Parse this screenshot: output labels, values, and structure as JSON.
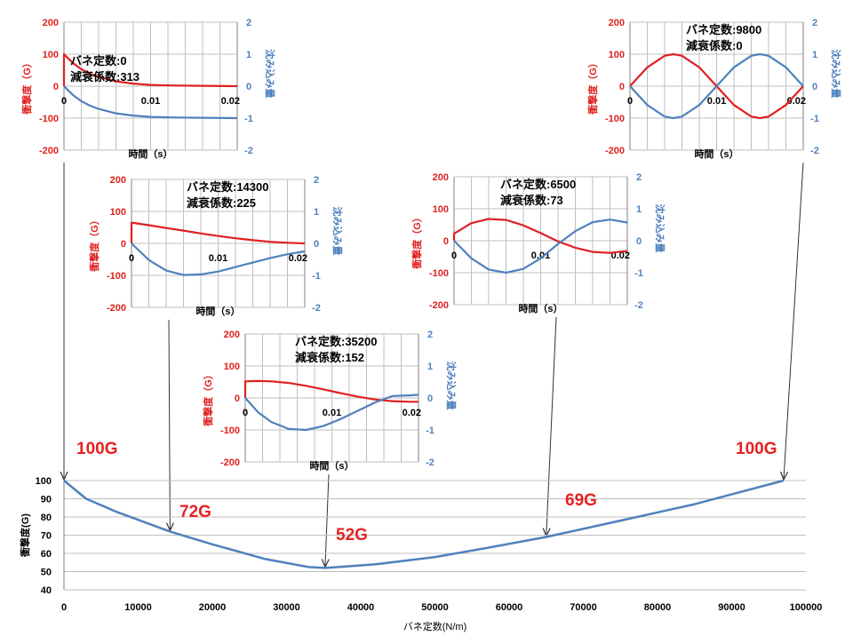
{
  "colors": {
    "accel": "#e02020",
    "defl": "#4f81bd",
    "grid": "#bfbfbf",
    "axis": "#808080",
    "annotation": "#e52222"
  },
  "chart_data": [
    {
      "id": "main",
      "type": "line",
      "x": [
        0,
        3000,
        7000,
        14300,
        20000,
        27000,
        33000,
        35200,
        42000,
        50000,
        57000,
        65000,
        75000,
        85000,
        97000
      ],
      "series": [
        {
          "values": [
            100,
            90,
            83,
            72,
            65,
            57,
            52.5,
            52,
            54,
            58,
            63,
            69,
            78,
            87,
            100
          ]
        }
      ],
      "xlabel": "バネ定数(N/m)",
      "ylabel": "衝撃度(G)",
      "xlim": [
        0,
        100000
      ],
      "ylim": [
        40,
        100
      ],
      "xticks": [
        "0",
        "10000",
        "20000",
        "30000",
        "40000",
        "50000",
        "60000",
        "70000",
        "80000",
        "90000",
        "100000"
      ],
      "yticks": [
        "40",
        "50",
        "60",
        "70",
        "80",
        "90",
        "100"
      ],
      "grid": true,
      "annotations": [
        {
          "text": "100G",
          "x": 0,
          "y": 100
        },
        {
          "text": "72G",
          "x": 14300,
          "y": 72
        },
        {
          "text": "52G",
          "x": 35200,
          "y": 52
        },
        {
          "text": "69G",
          "x": 65000,
          "y": 69
        },
        {
          "text": "100G",
          "x": 97000,
          "y": 100
        }
      ]
    },
    {
      "id": "k0",
      "type": "line",
      "spring_label": "バネ定数:",
      "spring_value": "0",
      "damping_label": "減衰係数:",
      "damping_value": "313",
      "xlabel": "時間（s）",
      "y1label": "衝撃度（G）",
      "y2label": "沈み込み量",
      "xlim": [
        0,
        0.02
      ],
      "y1lim": [
        -200,
        200
      ],
      "y2lim": [
        -2,
        2
      ],
      "xticks": [
        "0",
        "0.01",
        "0.02"
      ],
      "y1ticks": [
        "200",
        "100",
        "0",
        "-100",
        "-200"
      ],
      "y2ticks": [
        "2",
        "1",
        "0",
        "-1",
        "-2"
      ],
      "series": [
        {
          "axis": "left",
          "x": [
            0,
            0.001,
            0.002,
            0.003,
            0.004,
            0.006,
            0.008,
            0.01,
            0.013,
            0.016,
            0.02
          ],
          "values": [
            100,
            73,
            53,
            39,
            29,
            15,
            8,
            4,
            2,
            1,
            0
          ]
        },
        {
          "axis": "right",
          "x": [
            0,
            0.001,
            0.002,
            0.003,
            0.004,
            0.006,
            0.008,
            0.01,
            0.013,
            0.016,
            0.02
          ],
          "values": [
            0,
            -0.27,
            -0.47,
            -0.61,
            -0.71,
            -0.85,
            -0.92,
            -0.96,
            -0.98,
            -0.99,
            -1.0
          ]
        }
      ]
    },
    {
      "id": "k9800",
      "type": "line",
      "spring_label": "バネ定数:",
      "spring_value": "9800",
      "damping_label": "減衰係数:",
      "damping_value": "0",
      "xlabel": "時間（s）",
      "y1label": "衝撃度（G）",
      "y2label": "沈み込み量",
      "xlim": [
        0,
        0.02
      ],
      "y1lim": [
        -200,
        200
      ],
      "y2lim": [
        -2,
        2
      ],
      "xticks": [
        "0",
        "0.01",
        "0.02"
      ],
      "y1ticks": [
        "200",
        "100",
        "0",
        "-100",
        "-200"
      ],
      "y2ticks": [
        "2",
        "1",
        "0",
        "-1",
        "-2"
      ],
      "series": [
        {
          "axis": "left",
          "x": [
            0,
            0.002,
            0.004,
            0.005,
            0.006,
            0.008,
            0.01,
            0.012,
            0.014,
            0.015,
            0.016,
            0.018,
            0.02
          ],
          "values": [
            0,
            59,
            95,
            100,
            95,
            59,
            0,
            -59,
            -95,
            -100,
            -95,
            -59,
            0
          ]
        },
        {
          "axis": "right",
          "x": [
            0,
            0.002,
            0.004,
            0.005,
            0.006,
            0.008,
            0.01,
            0.012,
            0.014,
            0.015,
            0.016,
            0.018,
            0.02
          ],
          "values": [
            0,
            -0.59,
            -0.95,
            -1.0,
            -0.95,
            -0.59,
            0,
            0.59,
            0.95,
            1.0,
            0.95,
            0.59,
            0
          ]
        }
      ]
    },
    {
      "id": "k14300",
      "type": "line",
      "spring_label": "バネ定数:",
      "spring_value": "14300",
      "damping_label": "減衰係数:",
      "damping_value": "225",
      "xlabel": "時間（s）",
      "y1label": "衝撃度（G）",
      "y2label": "沈み込み量",
      "xlim": [
        0,
        0.02
      ],
      "y1lim": [
        -200,
        200
      ],
      "y2lim": [
        -2,
        2
      ],
      "xticks": [
        "0",
        "0.01",
        "0.02"
      ],
      "y1ticks": [
        "200",
        "100",
        "0",
        "-100",
        "-200"
      ],
      "y2ticks": [
        "2",
        "1",
        "0",
        "-1",
        "-2"
      ],
      "series": [
        {
          "axis": "left",
          "x": [
            0,
            0.002,
            0.004,
            0.006,
            0.008,
            0.01,
            0.012,
            0.014,
            0.016,
            0.018,
            0.02
          ],
          "values": [
            65,
            57,
            48,
            40,
            31,
            23,
            16,
            10,
            5,
            2,
            0
          ]
        },
        {
          "axis": "right",
          "x": [
            0,
            0.002,
            0.004,
            0.006,
            0.008,
            0.01,
            0.012,
            0.014,
            0.016,
            0.018,
            0.02
          ],
          "values": [
            0,
            -0.52,
            -0.85,
            -0.99,
            -0.97,
            -0.88,
            -0.74,
            -0.6,
            -0.46,
            -0.34,
            -0.25
          ]
        }
      ]
    },
    {
      "id": "k6500",
      "type": "line",
      "spring_label": "バネ定数:",
      "spring_value": "6500",
      "damping_label": "減衰係数:",
      "damping_value": "73",
      "xlabel": "時間（s）",
      "y1label": "衝撃度（G）",
      "y2label": "沈み込み量",
      "xlim": [
        0,
        0.02
      ],
      "y1lim": [
        -200,
        200
      ],
      "y2lim": [
        -2,
        2
      ],
      "xticks": [
        "0",
        "0.01",
        "0.02"
      ],
      "y1ticks": [
        "200",
        "100",
        "0",
        "-100",
        "-200"
      ],
      "y2ticks": [
        "2",
        "1",
        "0",
        "-1",
        "-2"
      ],
      "series": [
        {
          "axis": "left",
          "x": [
            0,
            0.002,
            0.004,
            0.006,
            0.008,
            0.01,
            0.012,
            0.014,
            0.016,
            0.018,
            0.02
          ],
          "values": [
            22,
            55,
            68,
            65,
            48,
            24,
            -2,
            -22,
            -35,
            -38,
            -32
          ]
        },
        {
          "axis": "right",
          "x": [
            0,
            0.002,
            0.004,
            0.006,
            0.008,
            0.01,
            0.012,
            0.014,
            0.016,
            0.018,
            0.02
          ],
          "values": [
            0,
            -0.55,
            -0.9,
            -1.0,
            -0.88,
            -0.55,
            -0.1,
            0.3,
            0.58,
            0.66,
            0.57
          ]
        }
      ]
    },
    {
      "id": "k35200",
      "type": "line",
      "spring_label": "バネ定数:",
      "spring_value": "35200",
      "damping_label": "減衰係数:",
      "damping_value": "152",
      "xlabel": "時間（s）",
      "y1label": "衝撃度（G）",
      "y2label": "沈み込み量",
      "xlim": [
        0,
        0.02
      ],
      "y1lim": [
        -200,
        200
      ],
      "y2lim": [
        -2,
        2
      ],
      "xticks": [
        "0",
        "0.01",
        "0.02"
      ],
      "y1ticks": [
        "200",
        "100",
        "0",
        "-100",
        "-200"
      ],
      "y2ticks": [
        "2",
        "1",
        "0",
        "-1",
        "-2"
      ],
      "series": [
        {
          "axis": "left",
          "x": [
            0,
            0.0015,
            0.003,
            0.005,
            0.007,
            0.009,
            0.011,
            0.013,
            0.015,
            0.017,
            0.019,
            0.02
          ],
          "values": [
            52,
            53,
            52,
            47,
            38,
            27,
            15,
            4,
            -5,
            -10,
            -12,
            -12
          ]
        },
        {
          "axis": "right",
          "x": [
            0,
            0.0015,
            0.003,
            0.005,
            0.007,
            0.009,
            0.011,
            0.013,
            0.015,
            0.017,
            0.019,
            0.02
          ],
          "values": [
            0,
            -0.45,
            -0.75,
            -0.97,
            -1.0,
            -0.88,
            -0.66,
            -0.4,
            -0.14,
            0.06,
            0.08,
            0.1
          ]
        }
      ]
    }
  ]
}
